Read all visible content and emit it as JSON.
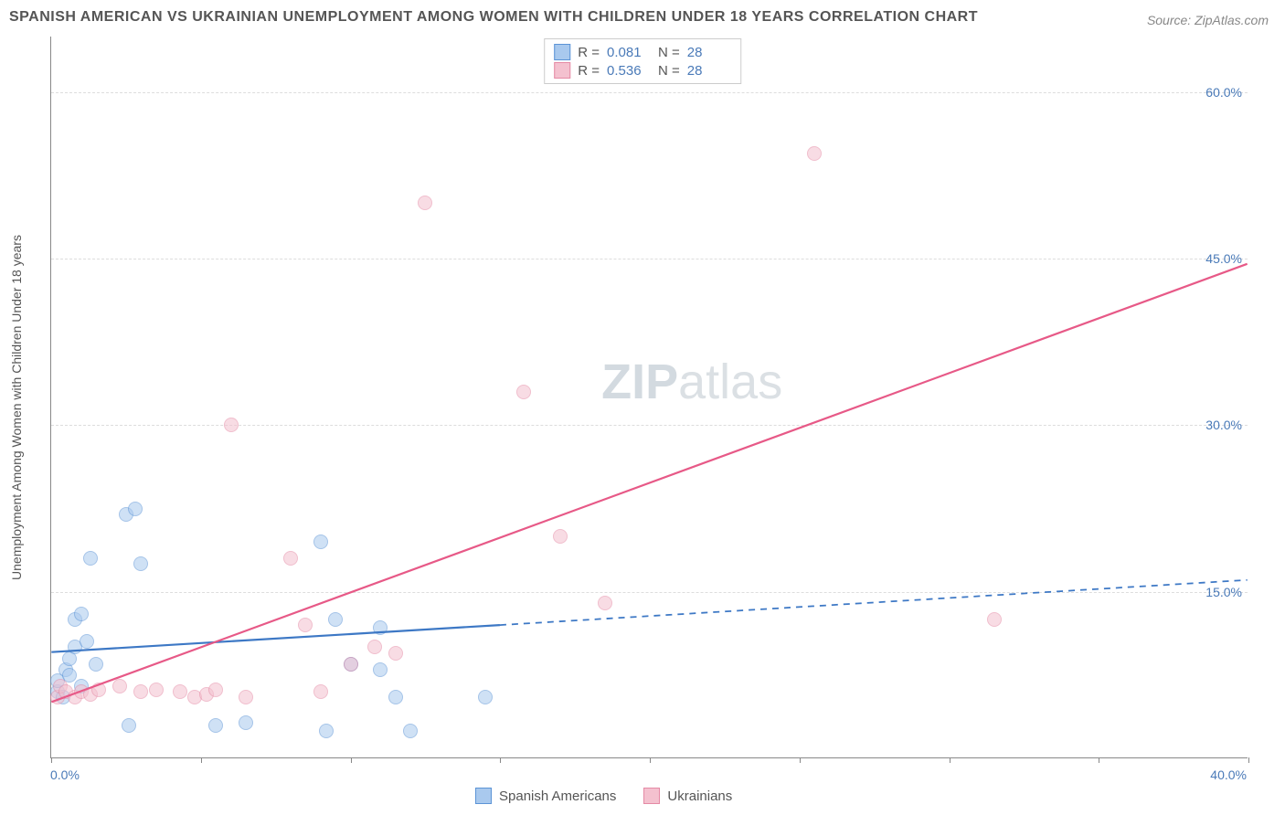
{
  "title": "SPANISH AMERICAN VS UKRAINIAN UNEMPLOYMENT AMONG WOMEN WITH CHILDREN UNDER 18 YEARS CORRELATION CHART",
  "source": "Source: ZipAtlas.com",
  "ylabel": "Unemployment Among Women with Children Under 18 years",
  "watermark_zip": "ZIP",
  "watermark_atlas": "atlas",
  "chart": {
    "type": "scatter",
    "xlim": [
      0,
      40
    ],
    "ylim": [
      0,
      65
    ],
    "background_color": "#ffffff",
    "grid_color": "#dddddd",
    "axis_color": "#888888",
    "label_color": "#4a7ab8",
    "label_fontsize": 14,
    "title_fontsize": 16,
    "title_color": "#555555",
    "marker_radius": 8,
    "marker_opacity": 0.55,
    "yticks": [
      {
        "pos": 15,
        "label": "15.0%"
      },
      {
        "pos": 30,
        "label": "30.0%"
      },
      {
        "pos": 45,
        "label": "45.0%"
      },
      {
        "pos": 60,
        "label": "60.0%"
      }
    ],
    "xticks": [
      {
        "pos": 0,
        "label": "0.0%"
      },
      {
        "pos": 5,
        "label": ""
      },
      {
        "pos": 10,
        "label": ""
      },
      {
        "pos": 15,
        "label": ""
      },
      {
        "pos": 20,
        "label": ""
      },
      {
        "pos": 25,
        "label": ""
      },
      {
        "pos": 30,
        "label": ""
      },
      {
        "pos": 35,
        "label": ""
      },
      {
        "pos": 40,
        "label": "40.0%"
      }
    ]
  },
  "series": [
    {
      "name": "Spanish Americans",
      "fill_color": "#a9c9ee",
      "stroke_color": "#5c94d6",
      "r_value": "0.081",
      "n_value": "28",
      "trend": {
        "x1": 0,
        "y1": 9.5,
        "x2": 40,
        "y2": 16,
        "solid_until_x": 15,
        "color": "#3d78c5",
        "width": 2.2
      },
      "points": [
        [
          0.2,
          6.0
        ],
        [
          0.2,
          7.0
        ],
        [
          0.4,
          5.5
        ],
        [
          0.5,
          8.0
        ],
        [
          0.6,
          9.0
        ],
        [
          0.6,
          7.5
        ],
        [
          0.8,
          10.0
        ],
        [
          0.8,
          12.5
        ],
        [
          1.0,
          13.0
        ],
        [
          1.0,
          6.5
        ],
        [
          1.2,
          10.5
        ],
        [
          1.3,
          18.0
        ],
        [
          1.5,
          8.5
        ],
        [
          2.5,
          22.0
        ],
        [
          2.8,
          22.5
        ],
        [
          2.6,
          3.0
        ],
        [
          3.0,
          17.5
        ],
        [
          5.5,
          3.0
        ],
        [
          6.5,
          3.2
        ],
        [
          9.0,
          19.5
        ],
        [
          9.2,
          2.5
        ],
        [
          9.5,
          12.5
        ],
        [
          10.0,
          8.5
        ],
        [
          11.0,
          8.0
        ],
        [
          12.0,
          2.5
        ],
        [
          11.0,
          11.8
        ],
        [
          11.5,
          5.5
        ],
        [
          14.5,
          5.5
        ]
      ]
    },
    {
      "name": "Ukrainians",
      "fill_color": "#f4c1cf",
      "stroke_color": "#e58aa5",
      "r_value": "0.536",
      "n_value": "28",
      "trend": {
        "x1": 0,
        "y1": 5.0,
        "x2": 40,
        "y2": 44.5,
        "solid_until_x": 40,
        "color": "#e75987",
        "width": 2.2
      },
      "points": [
        [
          0.2,
          5.5
        ],
        [
          0.3,
          6.5
        ],
        [
          0.5,
          6.0
        ],
        [
          0.8,
          5.5
        ],
        [
          1.0,
          6.0
        ],
        [
          1.3,
          5.8
        ],
        [
          1.6,
          6.2
        ],
        [
          2.3,
          6.5
        ],
        [
          3.0,
          6.0
        ],
        [
          3.5,
          6.2
        ],
        [
          4.3,
          6.0
        ],
        [
          4.8,
          5.5
        ],
        [
          5.2,
          5.8
        ],
        [
          5.5,
          6.2
        ],
        [
          6.5,
          5.5
        ],
        [
          6.0,
          30.0
        ],
        [
          8.0,
          18.0
        ],
        [
          8.5,
          12.0
        ],
        [
          9.0,
          6.0
        ],
        [
          10.0,
          8.5
        ],
        [
          10.8,
          10.0
        ],
        [
          11.5,
          9.5
        ],
        [
          12.5,
          50.0
        ],
        [
          15.8,
          33.0
        ],
        [
          17.0,
          20.0
        ],
        [
          18.5,
          14.0
        ],
        [
          25.5,
          54.5
        ],
        [
          31.5,
          12.5
        ]
      ]
    }
  ],
  "legend_top": {
    "r_prefix": "R =",
    "n_prefix": "N ="
  },
  "legend_bottom": [
    {
      "label": "Spanish Americans",
      "color": "#a9c9ee",
      "border": "#5c94d6"
    },
    {
      "label": "Ukrainians",
      "color": "#f4c1cf",
      "border": "#e58aa5"
    }
  ]
}
